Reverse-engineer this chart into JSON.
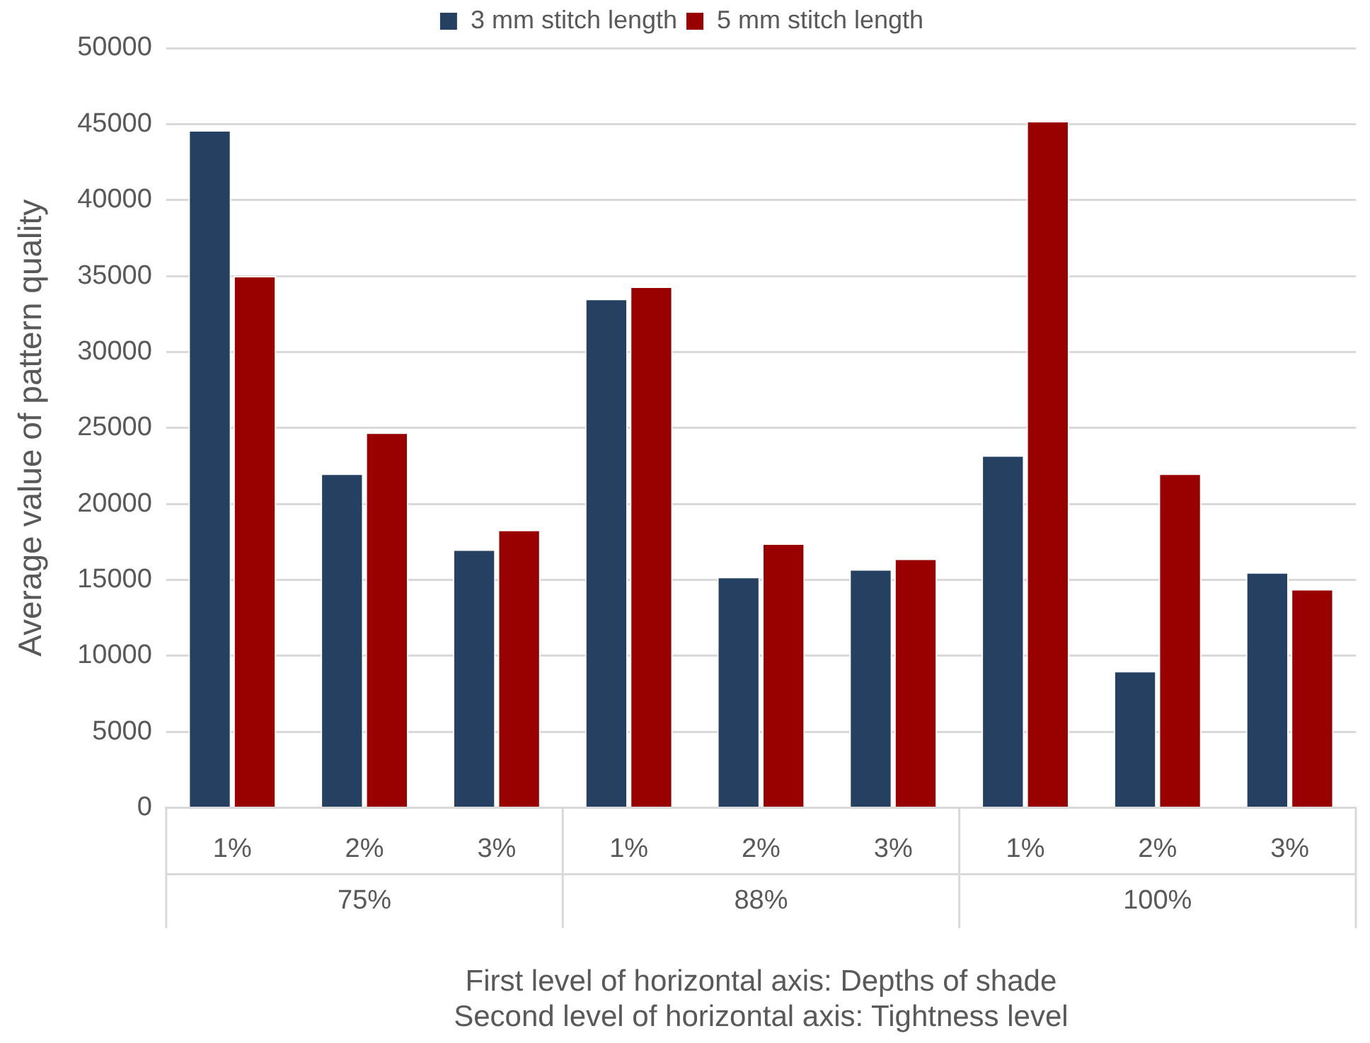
{
  "chart_data": {
    "type": "bar",
    "categories": [
      "1%",
      "2%",
      "3%",
      "1%",
      "2%",
      "3%",
      "1%",
      "2%",
      "3%"
    ],
    "series": [
      {
        "name": "3 mm stitch length",
        "color": "#264061",
        "values": [
          44600,
          22000,
          17000,
          33500,
          15200,
          15700,
          23200,
          9000,
          15500
        ]
      },
      {
        "name": "5 mm stitch length",
        "color": "#990000",
        "values": [
          35000,
          24700,
          18300,
          34300,
          17400,
          16400,
          45200,
          22000,
          14400
        ]
      }
    ],
    "annotations": [
      "75%",
      "88%",
      "100%"
    ],
    "xlabel": "First level of horizontal axis: Depths of shade\nSecond level of horizontal axis: Tightness level",
    "ylabel": "Average value of pattern quality",
    "ylim": [
      0,
      50000
    ],
    "yticks": [
      0,
      5000,
      10000,
      15000,
      20000,
      25000,
      30000,
      35000,
      40000,
      45000,
      50000
    ],
    "grid": "y",
    "legend": "top"
  }
}
